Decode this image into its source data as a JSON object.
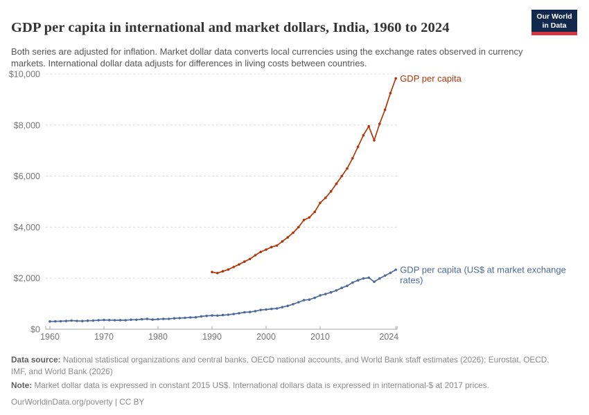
{
  "header": {
    "title": "GDP per capita in international and market dollars, India, 1960 to 2024",
    "subtitle": "Both series are adjusted for inflation. Market dollar data converts local currencies using the exchange rates observed in currency markets. International dollar data adjusts for differences in living costs between countries."
  },
  "logo": {
    "line1": "Our World",
    "line2": "in Data",
    "background_color": "#12294e",
    "accent_color": "#d6353f"
  },
  "chart_data": {
    "type": "line",
    "title": "GDP per capita in international and market dollars, India, 1960 to 2024",
    "xlabel": "",
    "ylabel": "",
    "xlim": [
      1960,
      2024
    ],
    "ylim": [
      0,
      10000
    ],
    "grid": "horizontal-dashed",
    "legend_position": "end-of-line-labels",
    "yticks": [
      {
        "value": 0,
        "label": "$0"
      },
      {
        "value": 2000,
        "label": "$2,000"
      },
      {
        "value": 4000,
        "label": "$4,000"
      },
      {
        "value": 6000,
        "label": "$6,000"
      },
      {
        "value": 8000,
        "label": "$8,000"
      },
      {
        "value": 10000,
        "label": "$10,000"
      }
    ],
    "xticks": [
      1960,
      1970,
      1980,
      1990,
      2000,
      2010,
      2024
    ],
    "series": [
      {
        "name": "gdp-per-capita-international-dollars",
        "label_lines": [
          "GDP per capita"
        ],
        "color": "#b13507",
        "start_year": 1990,
        "values": [
          2240,
          2200,
          2270,
          2340,
          2440,
          2540,
          2650,
          2750,
          2900,
          3030,
          3120,
          3220,
          3280,
          3440,
          3600,
          3780,
          4000,
          4280,
          4380,
          4600,
          4950,
          5150,
          5400,
          5700,
          6000,
          6300,
          6700,
          7150,
          7600,
          7950,
          7400,
          8050,
          8600,
          9250,
          9830
        ]
      },
      {
        "name": "gdp-per-capita-market-exchange-rates",
        "label_lines": [
          "GDP per capita (US$ at market exchange",
          "rates)"
        ],
        "color": "#4c6a9c",
        "start_year": 1960,
        "values": [
          305,
          310,
          315,
          323,
          338,
          324,
          319,
          334,
          338,
          352,
          362,
          358,
          352,
          355,
          352,
          374,
          372,
          390,
          403,
          376,
          392,
          404,
          407,
          428,
          435,
          448,
          460,
          470,
          505,
          524,
          540,
          535,
          554,
          570,
          596,
          626,
          663,
          676,
          708,
          755,
          772,
          797,
          813,
          864,
          917,
          982,
          1058,
          1141,
          1159,
          1233,
          1326,
          1380,
          1444,
          1520,
          1620,
          1700,
          1830,
          1920,
          1990,
          2020,
          1860,
          1990,
          2100,
          2210,
          2330
        ]
      }
    ]
  },
  "footer": {
    "datasource_label": "Data source:",
    "datasource_text": "National statistical organizations and central banks, OECD national accounts, and World Bank staff estimates (2026); Eurostat, OECD, IMF, and World Bank (2026)",
    "note_label": "Note:",
    "note_text": "Market dollar data is expressed in constant 2015 US$. International dollars data is expressed in international-$ at 2017 prices.",
    "link": "OurWorldinData.org/poverty | CC BY"
  }
}
